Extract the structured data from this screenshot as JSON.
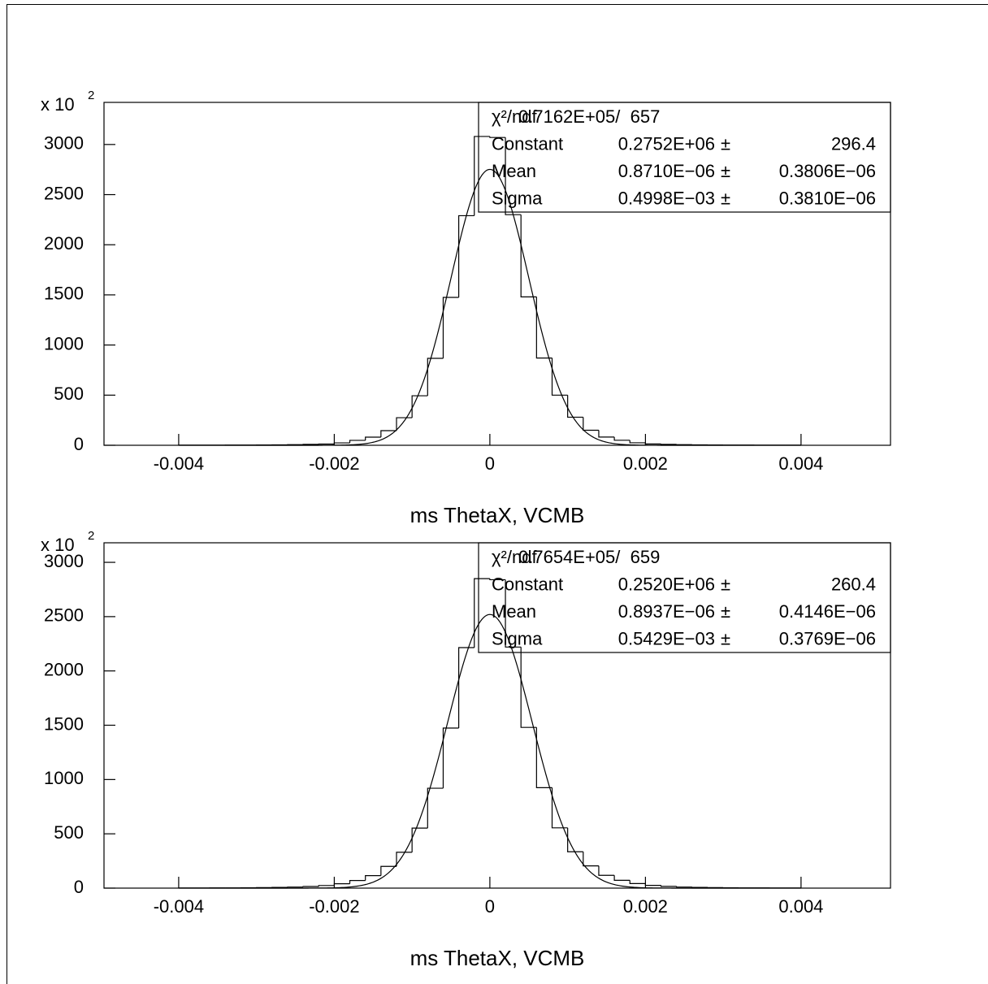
{
  "chart_data": [
    {
      "type": "histogram",
      "x_label": "ms ThetaX, VCMB",
      "y_multiplier": "x 10",
      "y_multiplier_exp": "2",
      "bins": [
        -0.004,
        -0.0038,
        -0.0036,
        -0.0034,
        -0.0032,
        -0.003,
        -0.0028,
        -0.0026,
        -0.0024,
        -0.0022,
        -0.002,
        -0.0018,
        -0.0016,
        -0.0014,
        -0.0012,
        -0.001,
        -0.0008,
        -0.0006,
        -0.0004,
        -0.0002,
        0,
        0.0002,
        0.0004,
        0.0006,
        0.0008,
        0.001,
        0.0012,
        0.0014,
        0.0016,
        0.0018,
        0.002,
        0.0022,
        0.0024,
        0.0026,
        0.0028,
        0.003,
        0.0032,
        0.0034,
        0.0036,
        0.0038,
        0.004
      ],
      "counts": [
        1,
        1,
        1,
        2,
        2,
        3,
        4,
        6,
        9,
        12,
        24,
        49,
        81,
        146,
        275,
        494,
        867,
        1475,
        2290,
        3080,
        3070,
        2300,
        1480,
        870,
        500,
        280,
        150,
        82,
        50,
        25,
        13,
        9,
        6,
        4,
        3,
        2,
        2,
        1,
        1,
        1
      ],
      "color": "#000000",
      "xlim": [
        -0.00496,
        0.00515
      ],
      "xticks": [
        -0.004,
        -0.002,
        0,
        0.002,
        0.004
      ],
      "ylim": [
        0,
        3420
      ],
      "yticks": [
        0,
        500,
        1000,
        1500,
        2000,
        2500,
        3000
      ],
      "stats": {
        "chi2_label": "χ²/ndf",
        "chi2": "0.7162E+05/  657",
        "pm": "±",
        "rows": [
          {
            "name": "Constant",
            "value": {
              "value": 2752,
              "label": "0.2752E+06"
            },
            "error": {
              "value": 2.964,
              "label": "296.4"
            }
          },
          {
            "name": "Mean",
            "value": {
              "value": 8.71e-07,
              "label": "0.8710E−06"
            },
            "error": {
              "value": 3.806e-07,
              "label": "0.3806E−06"
            }
          },
          {
            "name": "Sigma",
            "value": {
              "value": 0.0004998,
              "label": "0.4998E−03"
            },
            "error": {
              "value": 3.81e-07,
              "label": "0.3810E−06"
            }
          }
        ]
      }
    },
    {
      "type": "histogram",
      "x_label": "ms ThetaX, VCMB",
      "y_multiplier": "x 10",
      "y_multiplier_exp": "2",
      "bins": [
        -0.004,
        -0.0038,
        -0.0036,
        -0.0034,
        -0.0032,
        -0.003,
        -0.0028,
        -0.0026,
        -0.0024,
        -0.0022,
        -0.002,
        -0.0018,
        -0.0016,
        -0.0014,
        -0.0012,
        -0.001,
        -0.0008,
        -0.0006,
        -0.0004,
        -0.0002,
        0,
        0.0002,
        0.0004,
        0.0006,
        0.0008,
        0.001,
        0.0012,
        0.0014,
        0.0016,
        0.0018,
        0.002,
        0.0022,
        0.0024,
        0.0026,
        0.0028,
        0.003,
        0.0032,
        0.0034,
        0.0036,
        0.0038,
        0.004
      ],
      "counts": [
        1,
        1,
        2,
        2,
        3,
        5,
        7,
        10,
        15,
        24,
        40,
        70,
        115,
        200,
        330,
        553,
        920,
        1474,
        2215,
        2850,
        2840,
        2220,
        1480,
        925,
        555,
        335,
        205,
        118,
        72,
        42,
        25,
        16,
        10,
        7,
        5,
        3,
        2,
        2,
        1,
        1
      ],
      "color": "#000000",
      "xlim": [
        -0.00496,
        0.00515
      ],
      "xticks": [
        -0.004,
        -0.002,
        0,
        0.002,
        0.004
      ],
      "ylim": [
        0,
        3180
      ],
      "yticks": [
        0,
        500,
        1000,
        1500,
        2000,
        2500,
        3000
      ],
      "stats": {
        "chi2_label": "χ²/ndf",
        "chi2": "0.7654E+05/  659",
        "pm": "±",
        "rows": [
          {
            "name": "Constant",
            "value": {
              "value": 2520,
              "label": "0.2520E+06"
            },
            "error": {
              "value": 2.604,
              "label": "260.4"
            }
          },
          {
            "name": "Mean",
            "value": {
              "value": 8.937e-07,
              "label": "0.8937E−06"
            },
            "error": {
              "value": 4.146e-07,
              "label": "0.4146E−06"
            }
          },
          {
            "name": "Sigma",
            "value": {
              "value": 0.0005429,
              "label": "0.5429E−03"
            },
            "error": {
              "value": 3.769e-07,
              "label": "0.3769E−06"
            }
          }
        ]
      }
    }
  ]
}
